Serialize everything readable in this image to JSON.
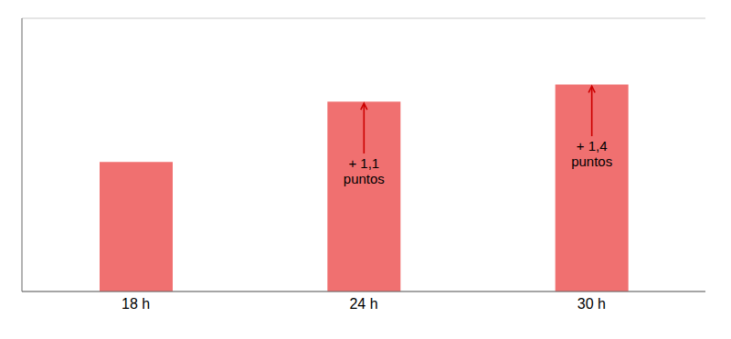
{
  "chart_data": {
    "type": "bar",
    "categories": [
      "18 h",
      "24 h",
      "30 h"
    ],
    "values": [
      4.5,
      6.6,
      7.2
    ],
    "color": "#F07070",
    "ylim": [
      0,
      9.5
    ],
    "yticks": [
      0,
      1,
      2,
      3,
      4,
      5,
      6,
      7,
      8,
      9
    ],
    "grid": true,
    "tick_labels": "x",
    "annotations": [
      {
        "category": "24 h",
        "text": [
          "+ 1,1",
          "puntos"
        ],
        "color": "#cc0000"
      },
      {
        "category": "30 h",
        "text": [
          "+ 1,4",
          "puntos"
        ],
        "color": "#cc0000"
      }
    ]
  }
}
